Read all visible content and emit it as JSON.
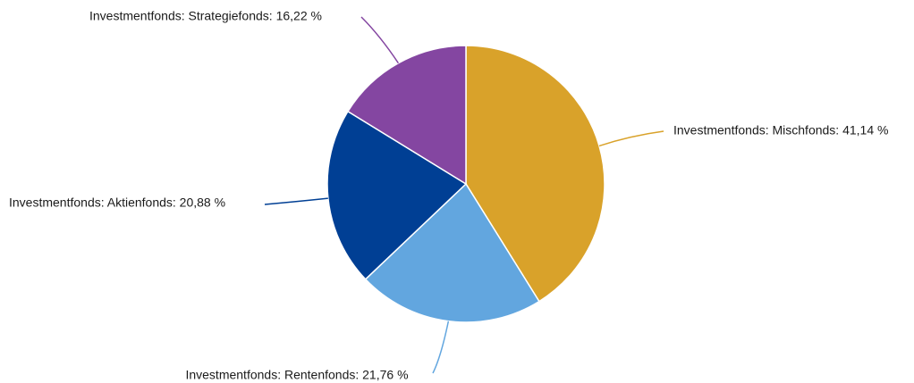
{
  "chart_data": {
    "type": "pie",
    "values": [
      41.14,
      21.76,
      20.88,
      16.22
    ],
    "value_labels": [
      "Investmentfonds: Mischfonds: 41,14 %",
      "Investmentfonds: Rentenfonds: 21,76 %",
      "Investmentfonds: Aktienfonds: 20,88 %",
      "Investmentfonds: Strategiefonds: 16,22 %"
    ],
    "colors": [
      "#d9a22a",
      "#62a6df",
      "#003f94",
      "#8446a1"
    ]
  }
}
